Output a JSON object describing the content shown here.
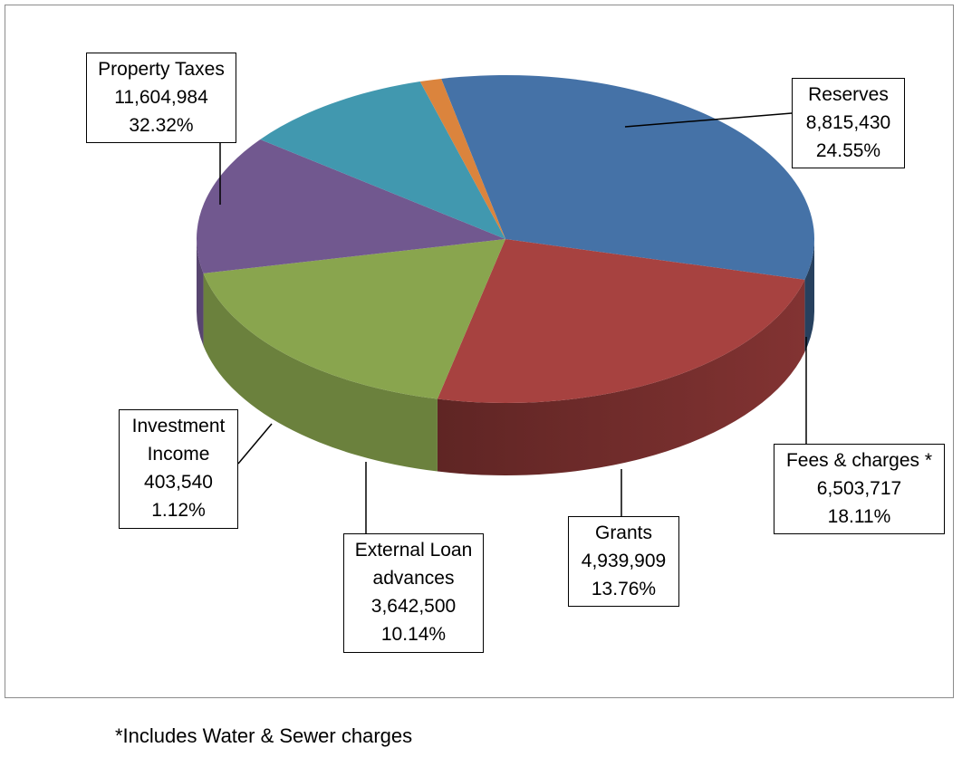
{
  "chart_data": {
    "type": "pie",
    "title": "",
    "style": "3d",
    "slices": [
      {
        "category": "Property Taxes",
        "category_lines": [
          "Property Taxes"
        ],
        "value": 11604984,
        "value_label": "11,604,984",
        "percent": 32.32,
        "percent_label": "32.32%",
        "color": "#4572A7"
      },
      {
        "category": "Reserves",
        "category_lines": [
          "Reserves"
        ],
        "value": 8815430,
        "value_label": "8,815,430",
        "percent": 24.55,
        "percent_label": "24.55%",
        "color": "#A74240"
      },
      {
        "category": "Fees & charges *",
        "category_lines": [
          "Fees & charges *"
        ],
        "value": 6503717,
        "value_label": "6,503,717",
        "percent": 18.11,
        "percent_label": "18.11%",
        "color": "#89A54E"
      },
      {
        "category": "Grants",
        "category_lines": [
          "Grants"
        ],
        "value": 4939909,
        "value_label": "4,939,909",
        "percent": 13.76,
        "percent_label": "13.76%",
        "color": "#71588F"
      },
      {
        "category": "External Loan advances",
        "category_lines": [
          "External Loan",
          "advances"
        ],
        "value": 3642500,
        "value_label": "3,642,500",
        "percent": 10.14,
        "percent_label": "10.14%",
        "color": "#4198AF"
      },
      {
        "category": "Investment Income",
        "category_lines": [
          "Investment",
          "Income"
        ],
        "value": 403540,
        "value_label": "403,540",
        "percent": 1.12,
        "percent_label": "1.12%",
        "color": "#DB843D"
      }
    ]
  },
  "footnote": "*Includes Water & Sewer charges"
}
